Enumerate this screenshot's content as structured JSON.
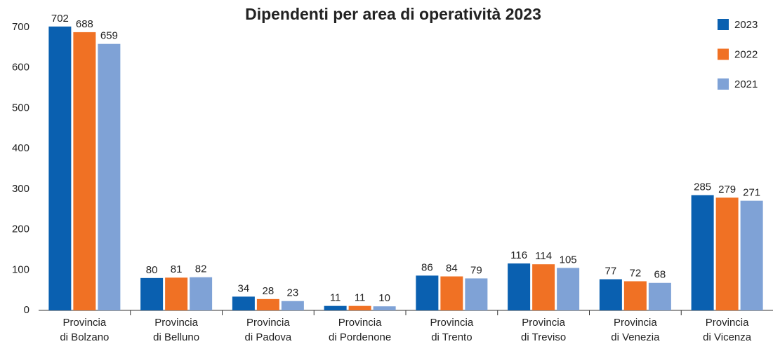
{
  "chart_data": {
    "type": "bar",
    "title": "Dipendenti per area di operatività 2023",
    "categories": [
      [
        "Provincia",
        "di Bolzano"
      ],
      [
        "Provincia",
        "di Belluno"
      ],
      [
        "Provincia",
        "di Padova"
      ],
      [
        "Provincia",
        "di Pordenone"
      ],
      [
        "Provincia",
        "di Trento"
      ],
      [
        "Provincia",
        "di Treviso"
      ],
      [
        "Provincia",
        "di Venezia"
      ],
      [
        "Provincia",
        "di Vicenza"
      ]
    ],
    "series": [
      {
        "name": "2023",
        "color": "#0a60b0",
        "values": [
          702,
          80,
          34,
          11,
          86,
          116,
          77,
          285
        ]
      },
      {
        "name": "2022",
        "color": "#f07124",
        "values": [
          688,
          81,
          28,
          11,
          84,
          114,
          72,
          279
        ]
      },
      {
        "name": "2021",
        "color": "#7fa2d6",
        "values": [
          659,
          82,
          23,
          10,
          79,
          105,
          68,
          271
        ]
      }
    ],
    "ylim": [
      0,
      700
    ],
    "yticks": [
      0,
      100,
      200,
      300,
      400,
      500,
      600,
      700
    ],
    "legend": "top-right",
    "grid": false
  }
}
